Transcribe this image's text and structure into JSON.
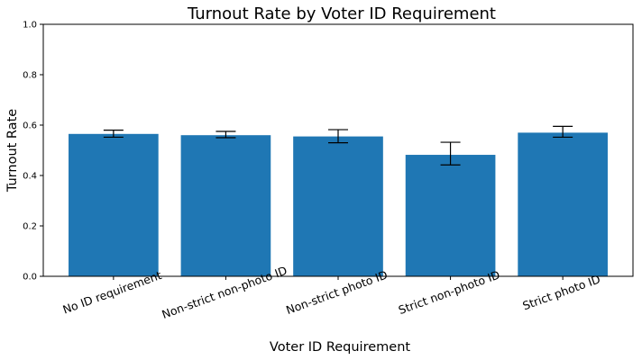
{
  "chart_data": {
    "type": "bar",
    "title": "Turnout Rate by Voter ID Requirement",
    "xlabel": "Voter ID Requirement",
    "ylabel": "Turnout Rate",
    "categories": [
      "No ID requirement",
      "Non-strict non-photo ID",
      "Non-strict photo ID",
      "Strict non-photo ID",
      "Strict photo ID"
    ],
    "values": [
      0.565,
      0.56,
      0.555,
      0.482,
      0.57
    ],
    "error_low": [
      0.552,
      0.55,
      0.53,
      0.442,
      0.552
    ],
    "error_high": [
      0.58,
      0.575,
      0.582,
      0.532,
      0.595
    ],
    "ylim": [
      0,
      1.0
    ],
    "yticks": [
      "0.0",
      "0.2",
      "0.4",
      "0.6",
      "0.8",
      "1.0"
    ],
    "ytick_values": [
      0,
      0.2,
      0.4,
      0.6,
      0.8,
      1.0
    ],
    "bar_color": "#1f77b4",
    "error_color": "#000000",
    "grid": false,
    "legend": "none"
  }
}
